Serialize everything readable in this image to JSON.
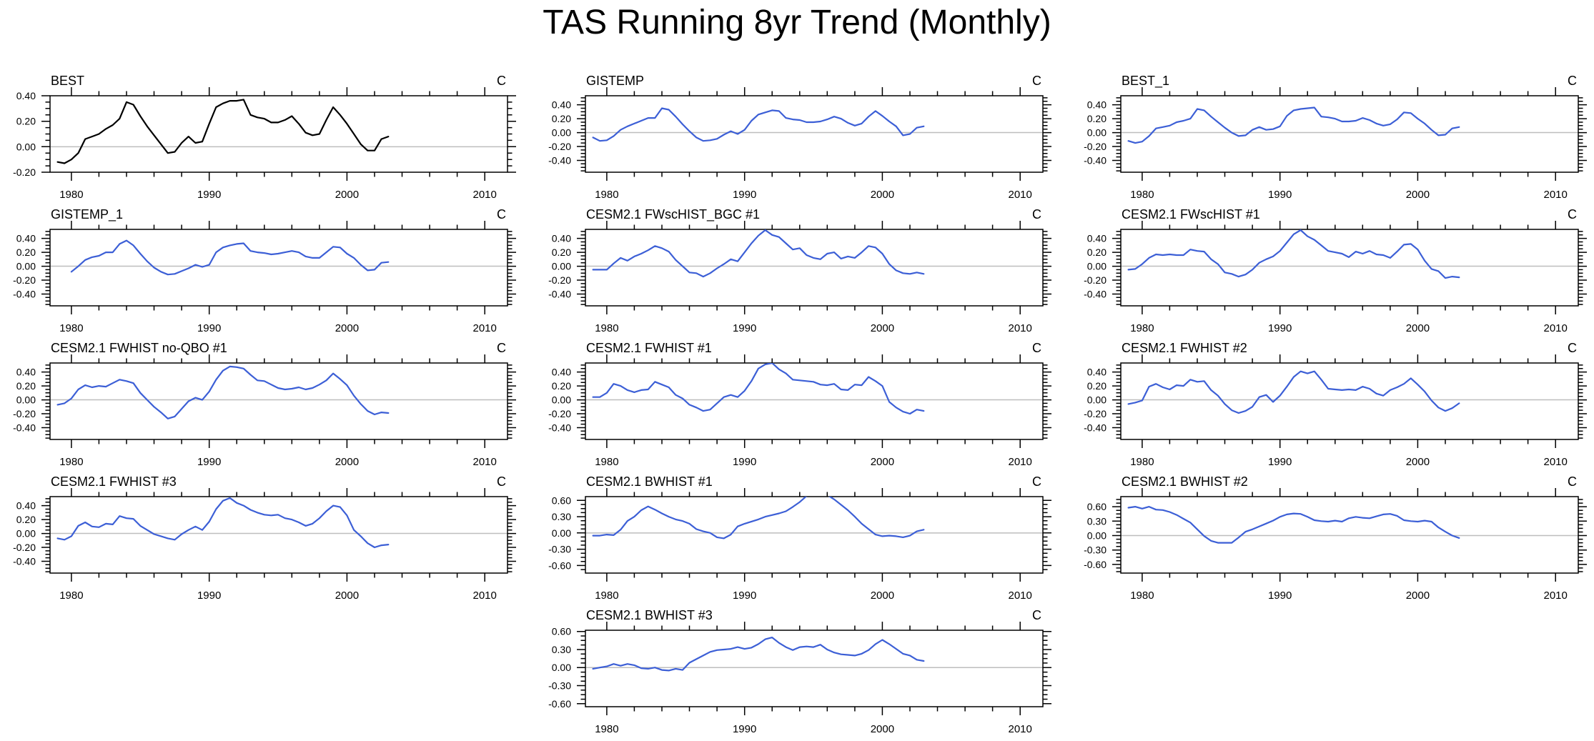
{
  "title": "TAS Running 8yr Trend (Monthly)",
  "colors": {
    "obs_line": "#000000",
    "model_line": "#3C5FD6",
    "zero_line": "#BEBEBE",
    "frame": "#000000",
    "text": "#000000"
  },
  "chart_data": {
    "type": "line",
    "suptitle": "TAS Running 8yr Trend (Monthly)",
    "x_axis": {
      "lim": [
        1978.45,
        2011.65
      ],
      "ticks": [
        1980,
        1990,
        2000,
        2010
      ],
      "tick_labels": [
        "1980",
        "1990",
        "2000",
        "2010"
      ],
      "minor_step_years": 2,
      "grid": false
    },
    "panels": [
      {
        "title": "BEST",
        "unit": "C",
        "color": "#000000",
        "ylim": [
          -0.2,
          0.4
        ],
        "yticks": [
          0.4,
          0.2,
          0.0,
          -0.2
        ],
        "ytick_labels": [
          "0.40",
          "0.20",
          "0.00",
          "-0.20"
        ],
        "yminor": 0.05,
        "x0": 1979,
        "dx": 0.5,
        "values": [
          -0.12,
          -0.13,
          -0.1,
          -0.05,
          0.06,
          0.08,
          0.1,
          0.14,
          0.17,
          0.22,
          0.35,
          0.33,
          0.24,
          0.16,
          0.09,
          0.02,
          -0.05,
          -0.04,
          0.03,
          0.08,
          0.03,
          0.04,
          0.18,
          0.31,
          0.34,
          0.36,
          0.36,
          0.37,
          0.25,
          0.23,
          0.22,
          0.19,
          0.19,
          0.21,
          0.24,
          0.18,
          0.11,
          0.09,
          0.1,
          0.21,
          0.31,
          0.25,
          0.18,
          0.1,
          0.02,
          -0.03,
          -0.03,
          0.06,
          0.08
        ]
      },
      {
        "title": "GISTEMP",
        "unit": "C",
        "color": "#3C5FD6",
        "ylim": [
          -0.57,
          0.53
        ],
        "yticks": [
          0.4,
          0.2,
          0.0,
          -0.2,
          -0.4
        ],
        "ytick_labels": [
          "0.40",
          "0.20",
          "0.00",
          "-0.20",
          "-0.40"
        ],
        "yminor": 0.05,
        "x0": 1979,
        "dx": 0.5,
        "values": [
          -0.07,
          -0.12,
          -0.11,
          -0.05,
          0.04,
          0.09,
          0.13,
          0.17,
          0.21,
          0.21,
          0.35,
          0.33,
          0.23,
          0.12,
          0.02,
          -0.07,
          -0.12,
          -0.11,
          -0.09,
          -0.03,
          0.02,
          -0.02,
          0.04,
          0.17,
          0.26,
          0.29,
          0.32,
          0.31,
          0.21,
          0.19,
          0.18,
          0.15,
          0.15,
          0.16,
          0.19,
          0.23,
          0.2,
          0.14,
          0.1,
          0.13,
          0.23,
          0.31,
          0.24,
          0.16,
          0.09,
          -0.04,
          -0.02,
          0.07,
          0.09
        ]
      },
      {
        "title": "BEST_1",
        "unit": "C",
        "color": "#3C5FD6",
        "ylim": [
          -0.57,
          0.53
        ],
        "yticks": [
          0.4,
          0.2,
          0.0,
          -0.2,
          -0.4
        ],
        "ytick_labels": [
          "0.40",
          "0.20",
          "0.00",
          "-0.20",
          "-0.40"
        ],
        "yminor": 0.05,
        "x0": 1979,
        "dx": 0.5,
        "values": [
          -0.12,
          -0.15,
          -0.13,
          -0.05,
          0.06,
          0.08,
          0.1,
          0.15,
          0.17,
          0.2,
          0.34,
          0.32,
          0.23,
          0.15,
          0.07,
          0.0,
          -0.05,
          -0.04,
          0.04,
          0.08,
          0.04,
          0.05,
          0.09,
          0.24,
          0.32,
          0.34,
          0.35,
          0.36,
          0.23,
          0.22,
          0.2,
          0.16,
          0.16,
          0.17,
          0.21,
          0.18,
          0.13,
          0.1,
          0.12,
          0.19,
          0.29,
          0.28,
          0.2,
          0.13,
          0.04,
          -0.04,
          -0.03,
          0.06,
          0.08
        ]
      },
      {
        "title": "GISTEMP_1",
        "unit": "C",
        "color": "#3C5FD6",
        "ylim": [
          -0.57,
          0.53
        ],
        "yticks": [
          0.4,
          0.2,
          0.0,
          -0.2,
          -0.4
        ],
        "ytick_labels": [
          "0.40",
          "0.20",
          "0.00",
          "-0.20",
          "-0.40"
        ],
        "yminor": 0.05,
        "x0": 1980,
        "dx": 0.5,
        "values": [
          -0.08,
          0.0,
          0.09,
          0.13,
          0.15,
          0.2,
          0.2,
          0.32,
          0.37,
          0.3,
          0.18,
          0.07,
          -0.02,
          -0.08,
          -0.12,
          -0.11,
          -0.07,
          -0.03,
          0.02,
          -0.01,
          0.02,
          0.2,
          0.27,
          0.3,
          0.32,
          0.33,
          0.22,
          0.2,
          0.19,
          0.17,
          0.18,
          0.2,
          0.22,
          0.2,
          0.14,
          0.12,
          0.12,
          0.2,
          0.28,
          0.27,
          0.18,
          0.12,
          0.02,
          -0.06,
          -0.05,
          0.05,
          0.06
        ]
      },
      {
        "title": "CESM2.1 FWscHIST_BGC #1",
        "unit": "C",
        "color": "#3C5FD6",
        "ylim": [
          -0.57,
          0.53
        ],
        "yticks": [
          0.4,
          0.2,
          0.0,
          -0.2,
          -0.4
        ],
        "ytick_labels": [
          "0.40",
          "0.20",
          "0.00",
          "-0.20",
          "-0.40"
        ],
        "yminor": 0.05,
        "x0": 1979,
        "dx": 0.5,
        "values": [
          -0.05,
          -0.05,
          -0.05,
          0.04,
          0.12,
          0.08,
          0.14,
          0.18,
          0.23,
          0.29,
          0.26,
          0.21,
          0.09,
          0.0,
          -0.09,
          -0.1,
          -0.15,
          -0.1,
          -0.03,
          0.03,
          0.1,
          0.07,
          0.2,
          0.33,
          0.44,
          0.52,
          0.45,
          0.42,
          0.33,
          0.24,
          0.26,
          0.16,
          0.12,
          0.1,
          0.18,
          0.2,
          0.11,
          0.14,
          0.12,
          0.2,
          0.29,
          0.27,
          0.18,
          0.03,
          -0.06,
          -0.1,
          -0.11,
          -0.09,
          -0.11
        ]
      },
      {
        "title": "CESM2.1 FWscHIST #1",
        "unit": "C",
        "color": "#3C5FD6",
        "ylim": [
          -0.57,
          0.53
        ],
        "yticks": [
          0.4,
          0.2,
          0.0,
          -0.2,
          -0.4
        ],
        "ytick_labels": [
          "0.40",
          "0.20",
          "0.00",
          "-0.20",
          "-0.40"
        ],
        "yminor": 0.05,
        "x0": 1979,
        "dx": 0.5,
        "values": [
          -0.05,
          -0.04,
          0.03,
          0.12,
          0.17,
          0.16,
          0.17,
          0.16,
          0.16,
          0.24,
          0.22,
          0.21,
          0.1,
          0.03,
          -0.09,
          -0.11,
          -0.15,
          -0.12,
          -0.05,
          0.05,
          0.1,
          0.14,
          0.22,
          0.34,
          0.46,
          0.52,
          0.43,
          0.38,
          0.3,
          0.22,
          0.2,
          0.18,
          0.13,
          0.21,
          0.18,
          0.22,
          0.17,
          0.16,
          0.12,
          0.21,
          0.31,
          0.32,
          0.24,
          0.08,
          -0.04,
          -0.07,
          -0.17,
          -0.15,
          -0.16
        ]
      },
      {
        "title": "CESM2.1 FWHIST no-QBO #1",
        "unit": "C",
        "color": "#3C5FD6",
        "ylim": [
          -0.57,
          0.53
        ],
        "yticks": [
          0.4,
          0.2,
          0.0,
          -0.2,
          -0.4
        ],
        "ytick_labels": [
          "0.40",
          "0.20",
          "0.00",
          "-0.20",
          "-0.40"
        ],
        "yminor": 0.05,
        "x0": 1979,
        "dx": 0.5,
        "values": [
          -0.07,
          -0.05,
          0.02,
          0.15,
          0.21,
          0.18,
          0.2,
          0.19,
          0.24,
          0.29,
          0.27,
          0.24,
          0.1,
          0.0,
          -0.1,
          -0.18,
          -0.27,
          -0.24,
          -0.13,
          -0.02,
          0.03,
          0.0,
          0.12,
          0.29,
          0.42,
          0.48,
          0.47,
          0.45,
          0.36,
          0.28,
          0.27,
          0.22,
          0.17,
          0.15,
          0.16,
          0.18,
          0.15,
          0.17,
          0.22,
          0.28,
          0.38,
          0.3,
          0.21,
          0.06,
          -0.06,
          -0.16,
          -0.21,
          -0.18,
          -0.19
        ]
      },
      {
        "title": "CESM2.1 FWHIST #1",
        "unit": "C",
        "color": "#3C5FD6",
        "ylim": [
          -0.57,
          0.53
        ],
        "yticks": [
          0.4,
          0.2,
          0.0,
          -0.2,
          -0.4
        ],
        "ytick_labels": [
          "0.40",
          "0.20",
          "0.00",
          "-0.20",
          "-0.40"
        ],
        "yminor": 0.05,
        "x0": 1979,
        "dx": 0.5,
        "values": [
          0.04,
          0.04,
          0.1,
          0.23,
          0.2,
          0.14,
          0.11,
          0.14,
          0.15,
          0.26,
          0.22,
          0.18,
          0.07,
          0.02,
          -0.07,
          -0.11,
          -0.16,
          -0.14,
          -0.05,
          0.04,
          0.07,
          0.04,
          0.13,
          0.27,
          0.45,
          0.51,
          0.53,
          0.44,
          0.38,
          0.29,
          0.28,
          0.27,
          0.26,
          0.22,
          0.21,
          0.23,
          0.15,
          0.14,
          0.22,
          0.21,
          0.33,
          0.27,
          0.2,
          -0.03,
          -0.11,
          -0.17,
          -0.2,
          -0.14,
          -0.16
        ]
      },
      {
        "title": "CESM2.1 FWHIST #2",
        "unit": "C",
        "color": "#3C5FD6",
        "ylim": [
          -0.57,
          0.53
        ],
        "yticks": [
          0.4,
          0.2,
          0.0,
          -0.2,
          -0.4
        ],
        "ytick_labels": [
          "0.40",
          "0.20",
          "0.00",
          "-0.20",
          "-0.40"
        ],
        "yminor": 0.05,
        "x0": 1979,
        "dx": 0.5,
        "values": [
          -0.06,
          -0.04,
          -0.01,
          0.19,
          0.23,
          0.18,
          0.15,
          0.21,
          0.2,
          0.29,
          0.26,
          0.27,
          0.14,
          0.06,
          -0.06,
          -0.15,
          -0.19,
          -0.16,
          -0.1,
          0.04,
          0.07,
          -0.03,
          0.06,
          0.19,
          0.33,
          0.41,
          0.38,
          0.41,
          0.29,
          0.16,
          0.15,
          0.14,
          0.15,
          0.14,
          0.19,
          0.16,
          0.09,
          0.06,
          0.14,
          0.18,
          0.23,
          0.31,
          0.22,
          0.12,
          -0.01,
          -0.11,
          -0.16,
          -0.12,
          -0.05
        ]
      },
      {
        "title": "CESM2.1 FWHIST #3",
        "unit": "C",
        "color": "#3C5FD6",
        "ylim": [
          -0.57,
          0.53
        ],
        "yticks": [
          0.4,
          0.2,
          0.0,
          -0.2,
          -0.4
        ],
        "ytick_labels": [
          "0.40",
          "0.20",
          "0.00",
          "-0.20",
          "-0.40"
        ],
        "yminor": 0.05,
        "x0": 1979,
        "dx": 0.5,
        "values": [
          -0.07,
          -0.09,
          -0.04,
          0.11,
          0.16,
          0.1,
          0.09,
          0.14,
          0.13,
          0.25,
          0.22,
          0.21,
          0.11,
          0.05,
          -0.01,
          -0.04,
          -0.07,
          -0.09,
          -0.01,
          0.05,
          0.1,
          0.05,
          0.17,
          0.35,
          0.47,
          0.51,
          0.44,
          0.4,
          0.34,
          0.3,
          0.27,
          0.26,
          0.27,
          0.22,
          0.2,
          0.16,
          0.11,
          0.14,
          0.22,
          0.32,
          0.4,
          0.38,
          0.26,
          0.05,
          -0.04,
          -0.14,
          -0.2,
          -0.17,
          -0.16
        ]
      },
      {
        "title": "CESM2.1 BWHIST #1",
        "unit": "C",
        "color": "#3C5FD6",
        "ylim": [
          -0.74,
          0.67
        ],
        "yticks": [
          0.6,
          0.3,
          0.0,
          -0.3,
          -0.6
        ],
        "ytick_labels": [
          "0.60",
          "0.30",
          "0.00",
          "-0.30",
          "-0.60"
        ],
        "yminor": 0.075,
        "x0": 1979,
        "dx": 0.5,
        "values": [
          -0.05,
          -0.05,
          -0.03,
          -0.04,
          0.06,
          0.22,
          0.3,
          0.42,
          0.49,
          0.43,
          0.36,
          0.3,
          0.25,
          0.22,
          0.17,
          0.07,
          0.03,
          0.0,
          -0.08,
          -0.1,
          -0.03,
          0.12,
          0.17,
          0.21,
          0.25,
          0.3,
          0.33,
          0.36,
          0.4,
          0.48,
          0.57,
          0.68,
          0.71,
          0.72,
          0.7,
          0.62,
          0.52,
          0.42,
          0.3,
          0.17,
          0.07,
          -0.03,
          -0.06,
          -0.05,
          -0.06,
          -0.08,
          -0.05,
          0.03,
          0.06
        ]
      },
      {
        "title": "CESM2.1 BWHIST #2",
        "unit": "C",
        "color": "#3C5FD6",
        "ylim": [
          -0.78,
          0.81
        ],
        "yticks": [
          0.6,
          0.3,
          0.0,
          -0.3,
          -0.6
        ],
        "ytick_labels": [
          "0.60",
          "0.30",
          "0.00",
          "-0.30",
          "-0.60"
        ],
        "yminor": 0.075,
        "x0": 1979,
        "dx": 0.5,
        "values": [
          0.58,
          0.6,
          0.56,
          0.6,
          0.54,
          0.53,
          0.49,
          0.43,
          0.35,
          0.27,
          0.13,
          -0.01,
          -0.11,
          -0.15,
          -0.15,
          -0.15,
          -0.04,
          0.08,
          0.13,
          0.19,
          0.25,
          0.31,
          0.39,
          0.44,
          0.46,
          0.45,
          0.39,
          0.32,
          0.3,
          0.29,
          0.31,
          0.29,
          0.36,
          0.39,
          0.37,
          0.36,
          0.4,
          0.44,
          0.45,
          0.41,
          0.32,
          0.3,
          0.29,
          0.31,
          0.29,
          0.17,
          0.08,
          0.0,
          -0.05
        ]
      },
      {
        "title": "CESM2.1 BWHIST #3",
        "unit": "C",
        "color": "#3C5FD6",
        "ylim": [
          -0.65,
          0.62
        ],
        "yticks": [
          0.6,
          0.3,
          0.0,
          -0.3,
          -0.6
        ],
        "ytick_labels": [
          "0.60",
          "0.30",
          "0.00",
          "-0.30",
          "-0.60"
        ],
        "yminor": 0.075,
        "x0": 1979,
        "dx": 0.5,
        "values": [
          -0.02,
          0.0,
          0.02,
          0.06,
          0.03,
          0.06,
          0.04,
          -0.01,
          -0.02,
          0.0,
          -0.04,
          -0.05,
          -0.02,
          -0.04,
          0.08,
          0.14,
          0.2,
          0.26,
          0.29,
          0.3,
          0.31,
          0.34,
          0.31,
          0.33,
          0.39,
          0.47,
          0.5,
          0.41,
          0.34,
          0.29,
          0.34,
          0.35,
          0.34,
          0.38,
          0.3,
          0.25,
          0.22,
          0.21,
          0.2,
          0.23,
          0.29,
          0.39,
          0.46,
          0.39,
          0.31,
          0.23,
          0.2,
          0.13,
          0.11
        ]
      }
    ]
  }
}
